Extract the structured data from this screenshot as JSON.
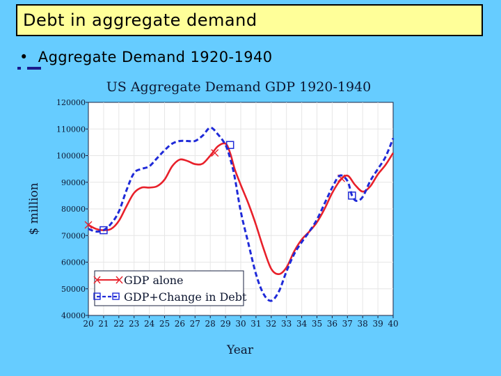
{
  "slide": {
    "title": "Debt in aggregate demand",
    "bullet": "Aggregate Demand 1920-1940"
  },
  "chart_data": {
    "type": "line",
    "title": "US Aggregate Demand GDP 1920-1940",
    "xlabel": "Year",
    "ylabel": "$ million",
    "x": [
      20,
      21,
      22,
      23,
      24,
      25,
      26,
      27,
      28,
      29,
      30,
      31,
      32,
      33,
      34,
      35,
      36,
      37,
      38,
      39,
      40
    ],
    "xticks": [
      "20",
      "21",
      "22",
      "23",
      "24",
      "25",
      "26",
      "27",
      "28",
      "29",
      "30",
      "31",
      "32",
      "33",
      "34",
      "35",
      "36",
      "37",
      "38",
      "39",
      "40"
    ],
    "yticks": [
      "40000",
      "50000",
      "60000",
      "70000",
      "80000",
      "90000",
      "100000",
      "110000",
      "120000"
    ],
    "ytick_values": [
      40000,
      50000,
      60000,
      70000,
      80000,
      90000,
      100000,
      110000,
      120000
    ],
    "xlim": [
      20,
      40
    ],
    "ylim": [
      40000,
      120000
    ],
    "legend_position": "bottom-left",
    "series": [
      {
        "name": "GDP alone",
        "color": "#e8202a",
        "style": "solid",
        "marker": "x",
        "x": [
          20,
          20.5,
          21,
          21.5,
          22,
          22.5,
          23,
          23.5,
          24,
          24.5,
          25,
          25.5,
          26,
          26.5,
          27,
          27.5,
          28,
          28.5,
          29,
          29.3,
          29.6,
          30,
          30.5,
          31,
          31.5,
          32,
          32.5,
          33,
          33.5,
          34,
          34.5,
          35,
          35.5,
          36,
          36.5,
          37,
          37.5,
          38,
          38.5,
          39,
          39.5,
          40
        ],
        "values": [
          74000,
          72500,
          72000,
          72500,
          75500,
          81000,
          86000,
          88000,
          88000,
          88500,
          91000,
          96000,
          98500,
          98000,
          96800,
          97000,
          100000,
          103500,
          104500,
          101000,
          95000,
          89000,
          82000,
          74000,
          65000,
          57500,
          55500,
          58000,
          64000,
          68500,
          71500,
          75000,
          80000,
          86000,
          90500,
          92500,
          89000,
          86500,
          88500,
          93000,
          96500,
          101000
        ],
        "marker_x": [
          20,
          28.3,
          36.6
        ],
        "marker_y": [
          74000,
          101000,
          91500
        ]
      },
      {
        "name": "GDP+Change in Debt",
        "color": "#1f2ad8",
        "style": "dashed",
        "marker": "square",
        "x": [
          20,
          20.5,
          21,
          21.5,
          22,
          22.5,
          23,
          23.5,
          24,
          24.5,
          25,
          25.5,
          26,
          26.5,
          27,
          27.5,
          28,
          28.5,
          29,
          29.3,
          29.6,
          30,
          30.5,
          31,
          31.5,
          32,
          32.5,
          33,
          33.5,
          34,
          34.5,
          35,
          35.5,
          36,
          36.5,
          37,
          37.3,
          37.6,
          38,
          38.5,
          39,
          39.5,
          40
        ],
        "values": [
          72500,
          71500,
          72000,
          74500,
          79000,
          87000,
          93500,
          95000,
          96000,
          99000,
          102000,
          104500,
          105500,
          105500,
          105500,
          107500,
          110500,
          108000,
          104000,
          99000,
          92000,
          79000,
          67000,
          55500,
          48000,
          45500,
          49000,
          56500,
          63000,
          67500,
          71500,
          76000,
          82000,
          88000,
          92500,
          90500,
          85000,
          83000,
          84500,
          90500,
          95000,
          99500,
          106500
        ],
        "marker_x": [
          21,
          29.3,
          37.3
        ],
        "marker_y": [
          72000,
          104000,
          85000
        ]
      }
    ]
  }
}
